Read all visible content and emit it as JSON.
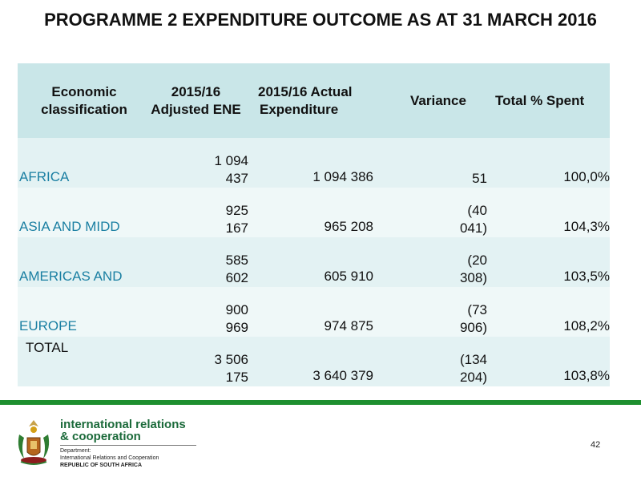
{
  "title": "PROGRAMME 2 EXPENDITURE OUTCOME AS AT 31 MARCH 2016",
  "table": {
    "headers": {
      "classification_l1": "Economic",
      "classification_l2": "classification",
      "adjusted_l1": "2015/16",
      "adjusted_l2": "Adjusted ENE",
      "actual_l1": "2015/16 Actual",
      "actual_l2": "Expenditure",
      "variance": "Variance",
      "pct": "Total % Spent"
    },
    "rows": [
      {
        "name": "AFRICA",
        "adjusted_l1": "1 094",
        "adjusted_l2": "437",
        "actual": "1 094 386",
        "variance_l1": "",
        "variance_l2": "51",
        "pct": "100,0%"
      },
      {
        "name": "ASIA AND MIDD",
        "adjusted_l1": "925",
        "adjusted_l2": "167",
        "actual": "965 208",
        "variance_l1": "(40",
        "variance_l2": "041)",
        "pct": "104,3%"
      },
      {
        "name": "AMERICAS AND",
        "adjusted_l1": "585",
        "adjusted_l2": "602",
        "actual": "605 910",
        "variance_l1": "(20",
        "variance_l2": "308)",
        "pct": "103,5%"
      },
      {
        "name": "EUROPE",
        "adjusted_l1": "900",
        "adjusted_l2": "969",
        "actual": "974 875",
        "variance_l1": "(73",
        "variance_l2": "906)",
        "pct": "108,2%"
      }
    ],
    "total": {
      "name": "TOTAL",
      "adjusted_l1": "3 506",
      "adjusted_l2": "175",
      "actual": "3 640 379",
      "variance_l1": "(134",
      "variance_l2": "204)",
      "pct": "103,8%"
    }
  },
  "footer": {
    "org_line1": "international relations",
    "org_line2": "& cooperation",
    "dept_line1": "Department:",
    "dept_line2": "International Relations and Cooperation",
    "dept_line3": "REPUBLIC OF SOUTH AFRICA",
    "page_number": "42",
    "accent_color": "#1e8f2f"
  }
}
